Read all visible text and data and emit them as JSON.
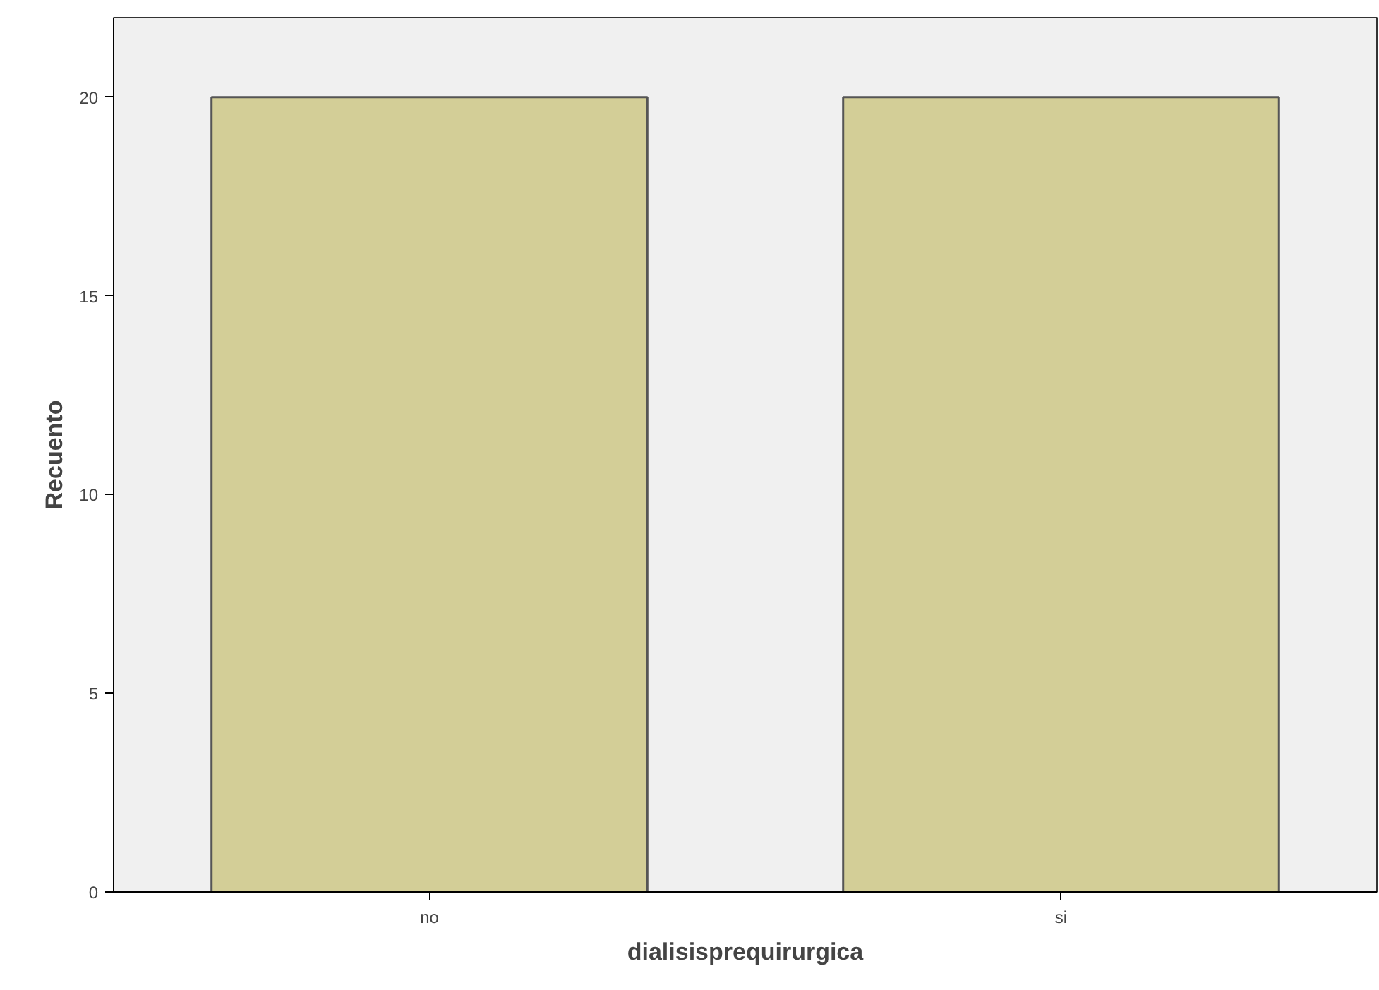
{
  "chart_data": {
    "type": "bar",
    "xlabel": "dialisisprequirurgica",
    "ylabel": "Recuento",
    "categories": [
      "no",
      "si"
    ],
    "values": [
      20,
      20
    ],
    "color": "#d3ce97",
    "ylim": [
      0,
      22
    ],
    "yticks": [
      0,
      5,
      10,
      15,
      20
    ],
    "grid": false
  }
}
